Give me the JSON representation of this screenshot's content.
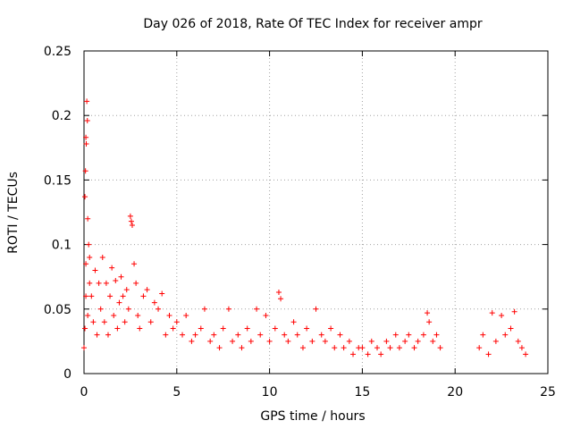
{
  "chart_data": {
    "type": "scatter",
    "title": "Day 026 of 2018, Rate Of TEC Index for receiver ampr",
    "xlabel": "GPS time / hours",
    "ylabel": "ROTI / TECUs",
    "xlim": [
      0,
      25
    ],
    "ylim": [
      0,
      0.25
    ],
    "x_ticks": [
      0,
      5,
      10,
      15,
      20,
      25
    ],
    "x_tick_labels": [
      "0",
      "5",
      "10",
      "15",
      "20",
      "25"
    ],
    "y_ticks": [
      0,
      0.05,
      0.1,
      0.15,
      0.2,
      0.25
    ],
    "y_tick_labels": [
      "0",
      "0.05",
      "0.1",
      "0.15",
      "0.2",
      "0.25"
    ],
    "grid": true,
    "marker": "plus",
    "marker_color": "#ff0000",
    "data_gap_hours": [
      19.3,
      21.3
    ],
    "series": [
      {
        "name": "ROTI",
        "points": [
          [
            0.05,
            0.137
          ],
          [
            0.1,
            0.183
          ],
          [
            0.12,
            0.178
          ],
          [
            0.15,
            0.211
          ],
          [
            0.18,
            0.196
          ],
          [
            0.2,
            0.12
          ],
          [
            0.08,
            0.157
          ],
          [
            0.25,
            0.1
          ],
          [
            0.1,
            0.085
          ],
          [
            0.3,
            0.07
          ],
          [
            0.0,
            0.02
          ],
          [
            0.05,
            0.035
          ],
          [
            0.1,
            0.06
          ],
          [
            0.2,
            0.045
          ],
          [
            0.3,
            0.09
          ],
          [
            0.4,
            0.06
          ],
          [
            0.5,
            0.04
          ],
          [
            0.6,
            0.08
          ],
          [
            0.7,
            0.03
          ],
          [
            0.8,
            0.07
          ],
          [
            0.9,
            0.05
          ],
          [
            1.0,
            0.09
          ],
          [
            1.1,
            0.04
          ],
          [
            1.2,
            0.07
          ],
          [
            1.3,
            0.03
          ],
          [
            1.4,
            0.06
          ],
          [
            1.5,
            0.082
          ],
          [
            1.6,
            0.045
          ],
          [
            1.7,
            0.072
          ],
          [
            1.8,
            0.035
          ],
          [
            1.9,
            0.055
          ],
          [
            2.0,
            0.075
          ],
          [
            2.1,
            0.06
          ],
          [
            2.2,
            0.04
          ],
          [
            2.3,
            0.065
          ],
          [
            2.4,
            0.05
          ],
          [
            2.5,
            0.122
          ],
          [
            2.55,
            0.118
          ],
          [
            2.6,
            0.115
          ],
          [
            2.7,
            0.085
          ],
          [
            2.8,
            0.07
          ],
          [
            2.9,
            0.045
          ],
          [
            3.0,
            0.035
          ],
          [
            3.2,
            0.06
          ],
          [
            3.4,
            0.065
          ],
          [
            3.6,
            0.04
          ],
          [
            3.8,
            0.055
          ],
          [
            4.0,
            0.05
          ],
          [
            4.2,
            0.062
          ],
          [
            4.4,
            0.03
          ],
          [
            4.6,
            0.045
          ],
          [
            4.8,
            0.035
          ],
          [
            5.0,
            0.04
          ],
          [
            5.3,
            0.03
          ],
          [
            5.5,
            0.045
          ],
          [
            5.8,
            0.025
          ],
          [
            6.0,
            0.03
          ],
          [
            6.3,
            0.035
          ],
          [
            6.5,
            0.05
          ],
          [
            6.8,
            0.025
          ],
          [
            7.0,
            0.03
          ],
          [
            7.3,
            0.02
          ],
          [
            7.5,
            0.035
          ],
          [
            7.8,
            0.05
          ],
          [
            8.0,
            0.025
          ],
          [
            8.3,
            0.03
          ],
          [
            8.5,
            0.02
          ],
          [
            8.8,
            0.035
          ],
          [
            9.0,
            0.025
          ],
          [
            9.3,
            0.05
          ],
          [
            9.5,
            0.03
          ],
          [
            9.8,
            0.045
          ],
          [
            10.0,
            0.025
          ],
          [
            10.3,
            0.035
          ],
          [
            10.5,
            0.063
          ],
          [
            10.6,
            0.058
          ],
          [
            10.8,
            0.03
          ],
          [
            11.0,
            0.025
          ],
          [
            11.3,
            0.04
          ],
          [
            11.5,
            0.03
          ],
          [
            11.8,
            0.02
          ],
          [
            12.0,
            0.035
          ],
          [
            12.3,
            0.025
          ],
          [
            12.5,
            0.05
          ],
          [
            12.8,
            0.03
          ],
          [
            13.0,
            0.025
          ],
          [
            13.3,
            0.035
          ],
          [
            13.5,
            0.02
          ],
          [
            13.8,
            0.03
          ],
          [
            14.0,
            0.02
          ],
          [
            14.3,
            0.025
          ],
          [
            14.5,
            0.015
          ],
          [
            14.8,
            0.02
          ],
          [
            15.0,
            0.02
          ],
          [
            15.3,
            0.015
          ],
          [
            15.5,
            0.025
          ],
          [
            15.8,
            0.02
          ],
          [
            16.0,
            0.015
          ],
          [
            16.3,
            0.025
          ],
          [
            16.5,
            0.02
          ],
          [
            16.8,
            0.03
          ],
          [
            17.0,
            0.02
          ],
          [
            17.3,
            0.025
          ],
          [
            17.5,
            0.03
          ],
          [
            17.8,
            0.02
          ],
          [
            18.0,
            0.025
          ],
          [
            18.3,
            0.03
          ],
          [
            18.5,
            0.047
          ],
          [
            18.6,
            0.04
          ],
          [
            18.8,
            0.025
          ],
          [
            19.0,
            0.03
          ],
          [
            19.2,
            0.02
          ],
          [
            21.3,
            0.02
          ],
          [
            21.5,
            0.03
          ],
          [
            21.8,
            0.015
          ],
          [
            22.0,
            0.047
          ],
          [
            22.2,
            0.025
          ],
          [
            22.5,
            0.045
          ],
          [
            22.7,
            0.03
          ],
          [
            23.0,
            0.035
          ],
          [
            23.2,
            0.048
          ],
          [
            23.4,
            0.025
          ],
          [
            23.6,
            0.02
          ],
          [
            23.8,
            0.015
          ]
        ]
      }
    ]
  }
}
